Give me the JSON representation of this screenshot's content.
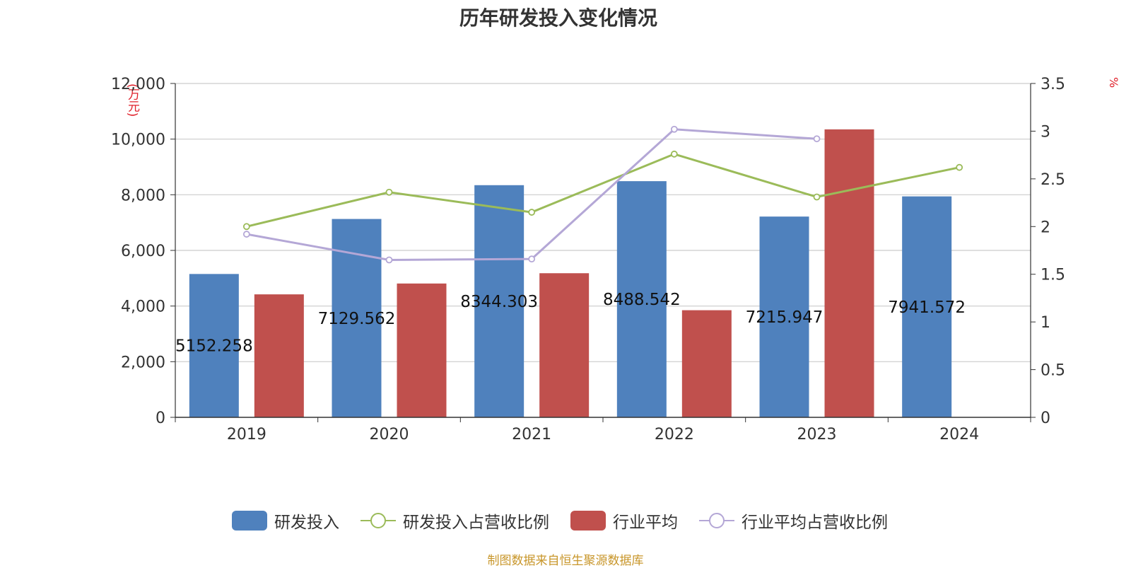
{
  "chart_data": {
    "type": "bar",
    "title": "历年研发投入变化情况",
    "categories": [
      "2019",
      "2020",
      "2021",
      "2022",
      "2023",
      "2024"
    ],
    "y_left": {
      "unit": "(万元)",
      "ylim": [
        0,
        12000
      ],
      "ticks": [
        "0",
        "2,000",
        "4,000",
        "6,000",
        "8,000",
        "10,000",
        "12,000"
      ],
      "tick_values": [
        0,
        2000,
        4000,
        6000,
        8000,
        10000,
        12000
      ]
    },
    "y_right": {
      "unit": "%",
      "ylim": [
        0,
        3.5
      ],
      "ticks": [
        "0",
        "0.5",
        "1",
        "1.5",
        "2",
        "2.5",
        "3",
        "3.5"
      ],
      "tick_values": [
        0,
        0.5,
        1,
        1.5,
        2,
        2.5,
        3,
        3.5
      ]
    },
    "grid": true,
    "legend_position": "bottom",
    "series": [
      {
        "name": "研发投入",
        "kind": "bar",
        "axis": "left",
        "color": "#4f81bd",
        "values": [
          5152.258,
          7129.562,
          8344.303,
          8488.542,
          7215.947,
          7941.572
        ],
        "labels": [
          "5152.258",
          "7129.562",
          "8344.303",
          "8488.542",
          "7215.947",
          "7941.572"
        ]
      },
      {
        "name": "研发投入占营收比例",
        "kind": "line",
        "axis": "right",
        "color": "#9bbb59",
        "values": [
          2.0,
          2.36,
          2.15,
          2.76,
          2.31,
          2.62
        ]
      },
      {
        "name": "行业平均",
        "kind": "bar",
        "axis": "left",
        "color": "#c0504d",
        "values": [
          4420,
          4810,
          5180,
          3850,
          10350,
          null
        ]
      },
      {
        "name": "行业平均占营收比例",
        "kind": "line",
        "axis": "right",
        "color": "#b4a7d6",
        "values": [
          1.92,
          1.65,
          1.66,
          3.02,
          2.92,
          null
        ]
      }
    ]
  },
  "source": "制图数据来自恒生聚源数据库"
}
